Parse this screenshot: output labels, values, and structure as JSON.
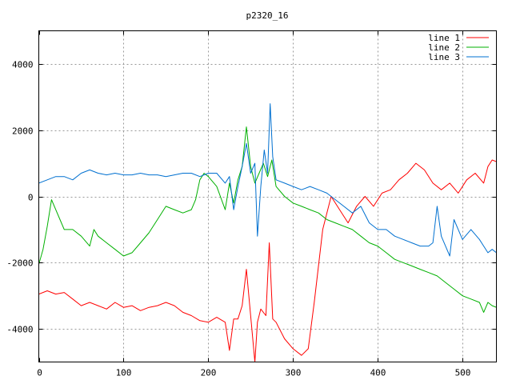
{
  "chart_data": {
    "type": "line",
    "title": "p2320_16",
    "xlabel": "",
    "ylabel": "",
    "xlim": [
      0,
      540
    ],
    "ylim": [
      -5000,
      5000
    ],
    "xticks": [
      0,
      100,
      200,
      300,
      400,
      500
    ],
    "yticks": [
      -4000,
      -2000,
      0,
      2000,
      4000
    ],
    "grid": true,
    "legend_position": "top-right",
    "series": [
      {
        "name": "line 1",
        "color": "#ff0000",
        "x": [
          0,
          10,
          20,
          30,
          40,
          50,
          60,
          70,
          80,
          90,
          100,
          110,
          120,
          130,
          140,
          150,
          160,
          170,
          180,
          190,
          200,
          210,
          220,
          225,
          230,
          235,
          240,
          245,
          250,
          255,
          258,
          262,
          268,
          272,
          276,
          280,
          290,
          300,
          310,
          318,
          325,
          335,
          345,
          355,
          365,
          375,
          385,
          395,
          405,
          415,
          425,
          435,
          445,
          455,
          465,
          475,
          485,
          495,
          505,
          515,
          525,
          530,
          535,
          540
        ],
        "y": [
          -2950,
          -2850,
          -2950,
          -2900,
          -3100,
          -3300,
          -3200,
          -3300,
          -3400,
          -3200,
          -3350,
          -3300,
          -3450,
          -3350,
          -3300,
          -3200,
          -3300,
          -3500,
          -3600,
          -3750,
          -3800,
          -3650,
          -3800,
          -4650,
          -3700,
          -3700,
          -3300,
          -2200,
          -3600,
          -5000,
          -3800,
          -3400,
          -3600,
          -1400,
          -3700,
          -3800,
          -4300,
          -4600,
          -4800,
          -4600,
          -3200,
          -1000,
          0,
          -400,
          -800,
          -300,
          0,
          -300,
          100,
          200,
          500,
          700,
          1000,
          800,
          400,
          200,
          400,
          100,
          500,
          700,
          400,
          900,
          1100,
          1050
        ]
      },
      {
        "name": "line 2",
        "color": "#00b000",
        "x": [
          0,
          5,
          10,
          15,
          20,
          25,
          30,
          40,
          50,
          60,
          65,
          70,
          80,
          90,
          100,
          110,
          120,
          130,
          140,
          150,
          160,
          170,
          180,
          185,
          190,
          195,
          200,
          210,
          220,
          225,
          230,
          235,
          240,
          245,
          250,
          255,
          260,
          265,
          270,
          275,
          280,
          290,
          300,
          310,
          320,
          330,
          340,
          350,
          360,
          370,
          380,
          390,
          400,
          410,
          420,
          430,
          440,
          450,
          460,
          470,
          480,
          490,
          500,
          510,
          520,
          525,
          530,
          535,
          540
        ],
        "y": [
          -2050,
          -1600,
          -900,
          -100,
          -400,
          -700,
          -1000,
          -1000,
          -1200,
          -1500,
          -1000,
          -1200,
          -1400,
          -1600,
          -1800,
          -1700,
          -1400,
          -1100,
          -700,
          -300,
          -400,
          -500,
          -400,
          -100,
          500,
          700,
          600,
          300,
          -400,
          400,
          -200,
          500,
          900,
          2100,
          900,
          400,
          700,
          1000,
          600,
          1100,
          300,
          0,
          -200,
          -300,
          -400,
          -500,
          -700,
          -800,
          -900,
          -1000,
          -1200,
          -1400,
          -1500,
          -1700,
          -1900,
          -2000,
          -2100,
          -2200,
          -2300,
          -2400,
          -2600,
          -2800,
          -3000,
          -3100,
          -3200,
          -3500,
          -3200,
          -3300,
          -3350
        ]
      },
      {
        "name": "line 3",
        "color": "#0070d0",
        "x": [
          0,
          10,
          20,
          30,
          40,
          50,
          60,
          70,
          80,
          90,
          100,
          110,
          120,
          130,
          140,
          150,
          160,
          170,
          180,
          190,
          200,
          210,
          220,
          225,
          230,
          235,
          240,
          245,
          250,
          255,
          258,
          262,
          266,
          270,
          273,
          276,
          280,
          290,
          300,
          310,
          320,
          330,
          340,
          350,
          360,
          370,
          380,
          390,
          400,
          410,
          420,
          430,
          440,
          450,
          460,
          465,
          470,
          475,
          480,
          485,
          490,
          495,
          500,
          510,
          520,
          525,
          530,
          535,
          540
        ],
        "y": [
          400,
          500,
          600,
          600,
          500,
          700,
          800,
          700,
          650,
          700,
          650,
          650,
          700,
          650,
          650,
          600,
          650,
          700,
          700,
          600,
          700,
          700,
          400,
          600,
          -400,
          300,
          900,
          1600,
          700,
          1000,
          -1200,
          300,
          1400,
          700,
          2800,
          1200,
          500,
          400,
          300,
          200,
          300,
          200,
          100,
          -100,
          -300,
          -500,
          -300,
          -800,
          -1000,
          -1000,
          -1200,
          -1300,
          -1400,
          -1500,
          -1500,
          -1400,
          -300,
          -1200,
          -1500,
          -1800,
          -700,
          -1000,
          -1300,
          -1000,
          -1300,
          -1500,
          -1700,
          -1600,
          -1700
        ]
      }
    ]
  }
}
